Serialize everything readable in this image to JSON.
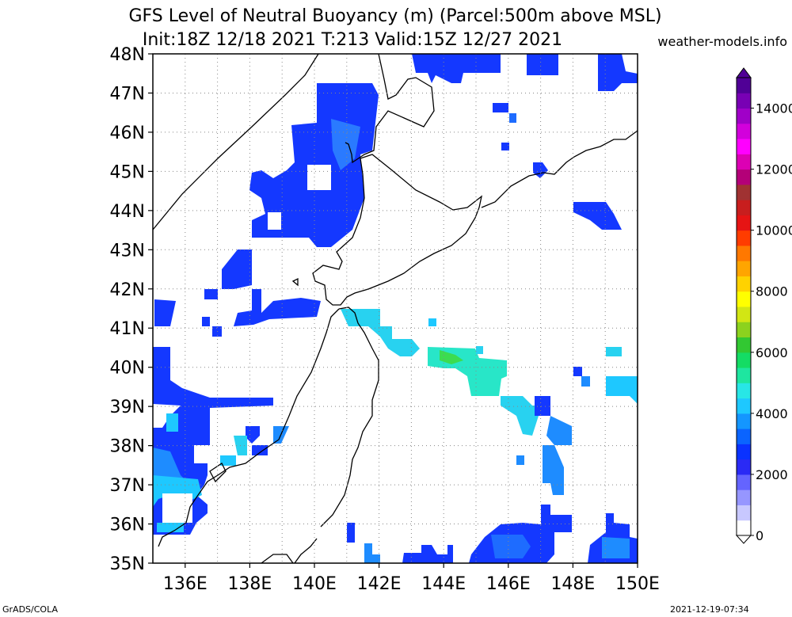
{
  "title": {
    "line1": "GFS Level of Neutral Buoyancy (m) (Parcel:500m above MSL)",
    "line2": "Init:18Z 12/18 2021 T:213 Valid:15Z 12/27 2021"
  },
  "site": "weather-models.info",
  "footer": {
    "left": "GrADS/COLA",
    "right": "2021-12-19-07:34"
  },
  "map": {
    "lon_range": [
      135,
      150
    ],
    "lat_range": [
      35,
      48
    ],
    "lat_labels": [
      "48N",
      "47N",
      "46N",
      "45N",
      "44N",
      "43N",
      "42N",
      "41N",
      "40N",
      "39N",
      "38N",
      "37N",
      "36N",
      "35N"
    ],
    "lon_labels": [
      "136E",
      "138E",
      "140E",
      "142E",
      "144E",
      "146E",
      "148E",
      "150E"
    ],
    "grid_style": "dotted"
  },
  "colorbar": {
    "unit": "m",
    "labels": [
      "14000",
      "12000",
      "10000",
      "8000",
      "6000",
      "4000",
      "2000",
      "0"
    ],
    "colors": [
      "#ffffff",
      "#c8c8ff",
      "#9696ff",
      "#6464ff",
      "#2a2af5",
      "#0a32ff",
      "#0a64ff",
      "#1496ff",
      "#1ec8ff",
      "#28e6e6",
      "#1ee6a0",
      "#14dc64",
      "#32c832",
      "#8cd21e",
      "#d2e614",
      "#ffff00",
      "#ffd200",
      "#ffa500",
      "#ff7800",
      "#ff3c00",
      "#e61414",
      "#c81e1e",
      "#a03232",
      "#b40078",
      "#dc00b4",
      "#ff00ff",
      "#d200dc",
      "#a000c8",
      "#7800b4",
      "#500096"
    ]
  }
}
